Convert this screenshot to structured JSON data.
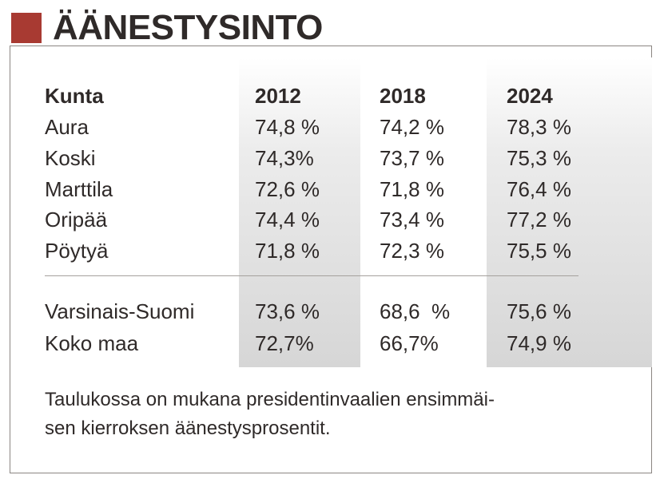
{
  "title": "ÄÄNESTYSINTO",
  "colors": {
    "accent": "#a83a32",
    "text": "#2f2a29"
  },
  "table": {
    "headers": [
      "Kunta",
      "2012",
      "2018",
      "2024"
    ],
    "rows": [
      [
        "Aura",
        "74,8 %",
        "74,2 %",
        "78,3 %"
      ],
      [
        "Koski",
        "74,3%",
        "73,7 %",
        "75,3 %"
      ],
      [
        "Marttila",
        "72,6 %",
        "71,8 %",
        "76,4 %"
      ],
      [
        "Oripää",
        "74,4 %",
        "73,4 %",
        "77,2 %"
      ],
      [
        "Pöytyä",
        "71,8 %",
        "72,3 %",
        "75,5 %"
      ]
    ],
    "summary_rows": [
      [
        "Varsinais-Suomi",
        "73,6 %",
        "68,6  %",
        "75,6 %"
      ],
      [
        "Koko maa",
        "72,7%",
        "66,7%",
        "74,9 %"
      ]
    ]
  },
  "footnote": {
    "line1": "Taulukossa on mukana presidentinvaalien ensimmäi-",
    "line2": "sen kierroksen äänestysprosentit."
  }
}
